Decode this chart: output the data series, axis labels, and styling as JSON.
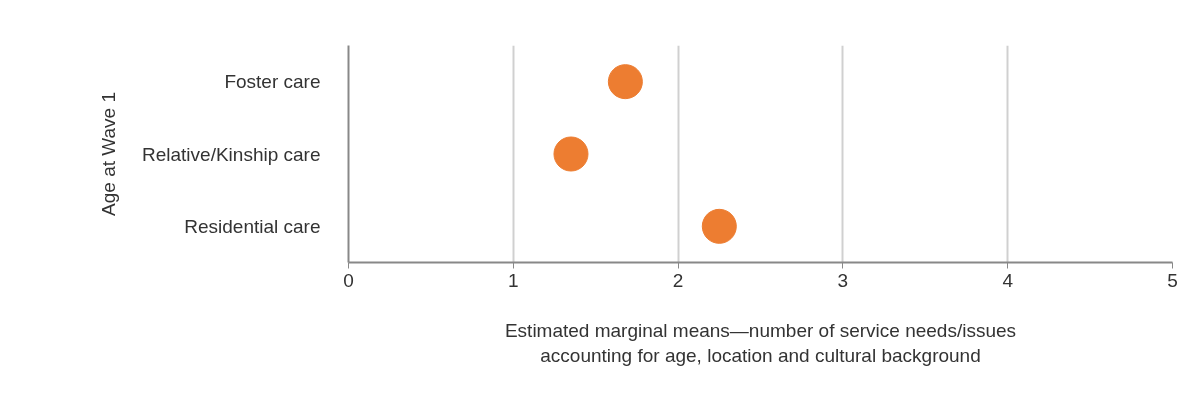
{
  "chart_data": {
    "type": "scatter",
    "orientation": "horizontal",
    "categories": [
      "Foster care",
      "Relative/Kinship care",
      "Residential care"
    ],
    "series": [
      {
        "color": "#ed7d31",
        "values": [
          1.68,
          1.35,
          2.25
        ]
      }
    ],
    "xlim": [
      0,
      5
    ],
    "xticks": [
      0,
      1,
      2,
      3,
      4,
      5
    ],
    "xlabel": "Estimated marginal means—number of service needs/issues\naccounting for age, location and cultural background",
    "ylabel": "Age at Wave 1",
    "grid": "x",
    "marker": "circle"
  }
}
